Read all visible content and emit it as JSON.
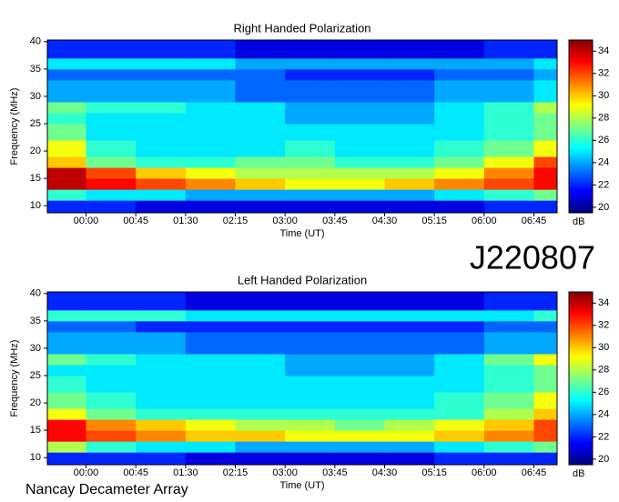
{
  "chart_data": [
    {
      "type": "heatmap",
      "title": "Right Handed Polarization",
      "x_label": "Time (UT)",
      "y_label": "Frequency (MHz)",
      "colorbar_label": "dB",
      "xbins": [
        -35,
        0,
        45,
        90,
        135,
        180,
        225,
        270,
        315,
        360,
        405,
        426
      ],
      "ybins": [
        8.7,
        11,
        13,
        15,
        17,
        19,
        22,
        25,
        27,
        29,
        33,
        35,
        37,
        40.3
      ],
      "values": [
        [
          22,
          22,
          21,
          21,
          21,
          21,
          21,
          21,
          21,
          22,
          22
        ],
        [
          26,
          25,
          25,
          24,
          24,
          24,
          24,
          24,
          25,
          26,
          27
        ],
        [
          34,
          33,
          32,
          31,
          30,
          29,
          29,
          30,
          31,
          32,
          33
        ],
        [
          34,
          32,
          30,
          29,
          28,
          28,
          28,
          28,
          29,
          31,
          33
        ],
        [
          30,
          27,
          26,
          26,
          27,
          27,
          26,
          26,
          27,
          29,
          32
        ],
        [
          29,
          26,
          25,
          25,
          25,
          26,
          25,
          25,
          26,
          27,
          29
        ],
        [
          27,
          25,
          25,
          25,
          25,
          25,
          25,
          25,
          25,
          26,
          27
        ],
        [
          26,
          25,
          25,
          25,
          25,
          24,
          24,
          24,
          25,
          26,
          27
        ],
        [
          27,
          26,
          26,
          25,
          25,
          24,
          24,
          24,
          25,
          26,
          28
        ],
        [
          24,
          24,
          24,
          24,
          23,
          23,
          23,
          23,
          24,
          24,
          25
        ],
        [
          23,
          23,
          23,
          23,
          23,
          22,
          22,
          22,
          23,
          23,
          24
        ],
        [
          25,
          25,
          25,
          25,
          24,
          24,
          24,
          24,
          24,
          24,
          25
        ],
        [
          22,
          22,
          22,
          22,
          21,
          21,
          21,
          21,
          21,
          22,
          22
        ]
      ],
      "xlim": [
        -35,
        426
      ],
      "xticks": [
        {
          "value": 0,
          "label": "00:00"
        },
        {
          "value": 45,
          "label": "00:45"
        },
        {
          "value": 90,
          "label": "01:30"
        },
        {
          "value": 135,
          "label": "02:15"
        },
        {
          "value": 180,
          "label": "03:00"
        },
        {
          "value": 225,
          "label": "03:45"
        },
        {
          "value": 270,
          "label": "04:30"
        },
        {
          "value": 315,
          "label": "05:15"
        },
        {
          "value": 360,
          "label": "06:00"
        },
        {
          "value": 405,
          "label": "06:45"
        }
      ],
      "ylim": [
        8.7,
        40.3
      ],
      "yticks": [
        10,
        15,
        20,
        25,
        30,
        35,
        40
      ],
      "clim": [
        19.5,
        35
      ],
      "cticks": [
        20,
        22,
        24,
        26,
        28,
        30,
        32,
        34
      ],
      "colorscale": [
        "#00007f",
        "#0000ff",
        "#007fff",
        "#00ffff",
        "#7fff7f",
        "#ffff00",
        "#ff7f00",
        "#ff0000",
        "#7f0000"
      ]
    },
    {
      "type": "heatmap",
      "title": "Left Handed Polarization",
      "x_label": "Time (UT)",
      "y_label": "Frequency (MHz)",
      "colorbar_label": "dB",
      "xbins": [
        -35,
        0,
        45,
        90,
        135,
        180,
        225,
        270,
        315,
        360,
        405,
        426
      ],
      "ybins": [
        8.7,
        11,
        13,
        15,
        17,
        19,
        22,
        25,
        27,
        29,
        33,
        35,
        37,
        40.3
      ],
      "values": [
        [
          22,
          22,
          22,
          21,
          21,
          21,
          21,
          21,
          22,
          22,
          22
        ],
        [
          28,
          26,
          25,
          25,
          24,
          24,
          24,
          24,
          25,
          26,
          27
        ],
        [
          33,
          32,
          31,
          30,
          30,
          29,
          29,
          29,
          30,
          31,
          32
        ],
        [
          33,
          31,
          30,
          29,
          28,
          28,
          27,
          28,
          29,
          30,
          32
        ],
        [
          29,
          27,
          26,
          26,
          26,
          26,
          26,
          26,
          26,
          28,
          30
        ],
        [
          27,
          26,
          25,
          25,
          25,
          25,
          25,
          25,
          26,
          27,
          29
        ],
        [
          26,
          25,
          25,
          25,
          25,
          25,
          25,
          25,
          25,
          26,
          27
        ],
        [
          25,
          25,
          25,
          25,
          25,
          24,
          24,
          24,
          25,
          26,
          27
        ],
        [
          27,
          26,
          25,
          25,
          25,
          24,
          24,
          24,
          25,
          27,
          29
        ],
        [
          24,
          24,
          24,
          23,
          23,
          23,
          23,
          23,
          23,
          24,
          24
        ],
        [
          23,
          23,
          22,
          22,
          22,
          22,
          22,
          22,
          22,
          23,
          23
        ],
        [
          26,
          26,
          26,
          25,
          25,
          25,
          25,
          25,
          25,
          25,
          26
        ],
        [
          22,
          22,
          22,
          21,
          21,
          21,
          21,
          21,
          21,
          22,
          22
        ]
      ],
      "xlim": [
        -35,
        426
      ],
      "xticks": [
        {
          "value": 0,
          "label": "00:00"
        },
        {
          "value": 45,
          "label": "00:45"
        },
        {
          "value": 90,
          "label": "01:30"
        },
        {
          "value": 135,
          "label": "02:15"
        },
        {
          "value": 180,
          "label": "03:00"
        },
        {
          "value": 225,
          "label": "03:45"
        },
        {
          "value": 270,
          "label": "04:30"
        },
        {
          "value": 315,
          "label": "05:15"
        },
        {
          "value": 360,
          "label": "06:00"
        },
        {
          "value": 405,
          "label": "06:45"
        }
      ],
      "ylim": [
        8.7,
        40.3
      ],
      "yticks": [
        10,
        15,
        20,
        25,
        30,
        35,
        40
      ],
      "clim": [
        19.5,
        35
      ],
      "cticks": [
        20,
        22,
        24,
        26,
        28,
        30,
        32,
        34
      ],
      "colorscale": [
        "#00007f",
        "#0000ff",
        "#007fff",
        "#00ffff",
        "#7fff7f",
        "#ffff00",
        "#ff7f00",
        "#ff0000",
        "#7f0000"
      ]
    }
  ],
  "observation_id": "J220807",
  "instrument": "Nancay Decameter Array"
}
